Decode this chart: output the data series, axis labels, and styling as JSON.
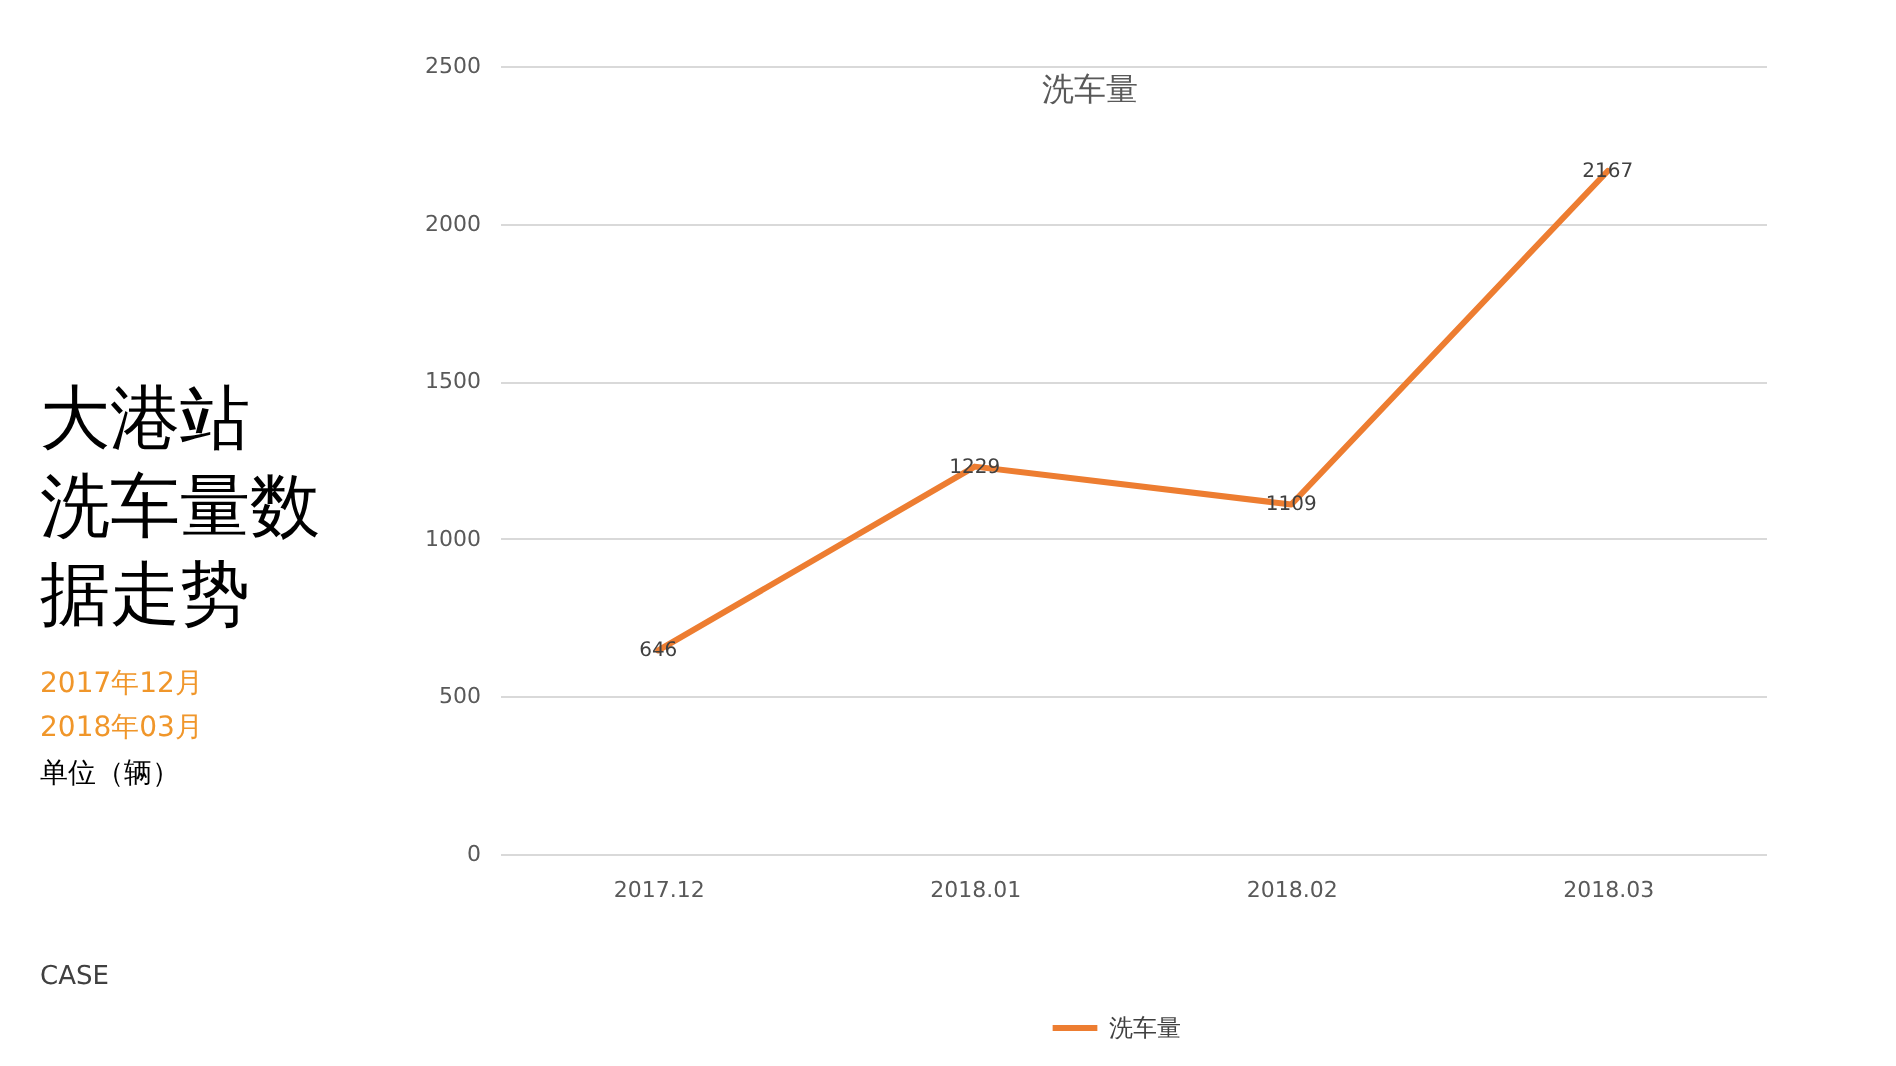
{
  "chart_data": {
    "type": "line",
    "title": "大港站洗车量数据走势",
    "subtitle": "2017年12月\n2018年03月",
    "annotations": [
      "洗车量",
      "单位（辆）",
      "CASE"
    ],
    "categories": [
      "2017.12",
      "2018.01",
      "2018.02",
      "2018.03"
    ],
    "series": [
      {
        "name": "洗车量",
        "color": "#ed7d31",
        "values": [
          646,
          1229,
          1109,
          2167
        ]
      }
    ],
    "ylim": [
      0,
      2500
    ],
    "yticks": [
      0,
      500,
      1000,
      1500,
      2000,
      2500
    ],
    "grid": "y",
    "legend": "bottom",
    "data_labels": true
  }
}
